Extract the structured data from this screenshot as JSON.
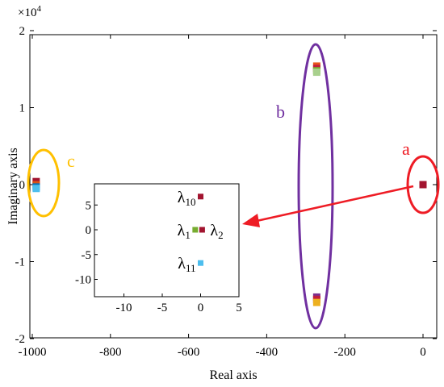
{
  "chart_data": {
    "type": "scatter",
    "title": "",
    "xlabel": "Real axis",
    "ylabel": "Imaginary axis",
    "xlim": [
      -1000,
      0
    ],
    "ylim": [
      -2.1,
      2.1
    ],
    "x_ticks": [
      -1000,
      -800,
      -600,
      -400,
      -200,
      0
    ],
    "x_tick_labels": [
      "-1000",
      "-800",
      "-600",
      "-400",
      "-200",
      "0"
    ],
    "y_ticks": [
      -2,
      -1,
      0,
      1,
      2
    ],
    "y_tick_labels": [
      "-2",
      "-1",
      "0",
      "1",
      "2"
    ],
    "y_exponent": "×10",
    "y_exponent_power": "4",
    "grid": false,
    "main_points": [
      {
        "x": -272,
        "y": 1.54,
        "color": "#e8541a"
      },
      {
        "x": -272,
        "y": 1.51,
        "color": "#c21f3d"
      },
      {
        "x": -272,
        "y": 1.48,
        "color": "#77ac30"
      },
      {
        "x": -272,
        "y": 1.46,
        "color": "#a8d08d"
      },
      {
        "x": -272,
        "y": -1.46,
        "color": "#7e2f8e"
      },
      {
        "x": -272,
        "y": -1.49,
        "color": "#c21f3d"
      },
      {
        "x": -272,
        "y": -1.53,
        "color": "#edb120"
      },
      {
        "x": -990,
        "y": 0.04,
        "color": "#a2142f"
      },
      {
        "x": -990,
        "y": 0.0,
        "color": "#d95319"
      },
      {
        "x": -990,
        "y": -0.03,
        "color": "#0072bd"
      },
      {
        "x": -990,
        "y": -0.05,
        "color": "#4dbeee"
      },
      {
        "x": 0,
        "y": 0.0,
        "color": "#a2142f"
      }
    ],
    "groups": [
      {
        "label": "a",
        "color": "#ee1c25"
      },
      {
        "label": "b",
        "color": "#7030a0"
      },
      {
        "label": "c",
        "color": "#ffc000"
      }
    ],
    "inset": {
      "xlim": [
        -13,
        5
      ],
      "ylim": [
        -14,
        9
      ],
      "x_ticks": [
        -10,
        -5,
        0,
        5
      ],
      "x_tick_labels": [
        "-10",
        "-5",
        "0",
        "5"
      ],
      "y_ticks": [
        -10,
        -5,
        0,
        5
      ],
      "y_tick_labels": [
        "-10",
        "-5",
        "0",
        "5"
      ],
      "points": [
        {
          "x": 0,
          "y": 6.7,
          "color": "#a2142f",
          "label": "λ",
          "sub": "10",
          "pos": "left"
        },
        {
          "x": -0.7,
          "y": 0,
          "color": "#77ac30",
          "label": "λ",
          "sub": "1",
          "pos": "left"
        },
        {
          "x": 0.2,
          "y": 0,
          "color": "#a2142f",
          "label": "λ",
          "sub": "2",
          "pos": "right"
        },
        {
          "x": 0,
          "y": -6.7,
          "color": "#4dbeee",
          "label": "λ",
          "sub": "11",
          "pos": "left"
        }
      ]
    }
  }
}
